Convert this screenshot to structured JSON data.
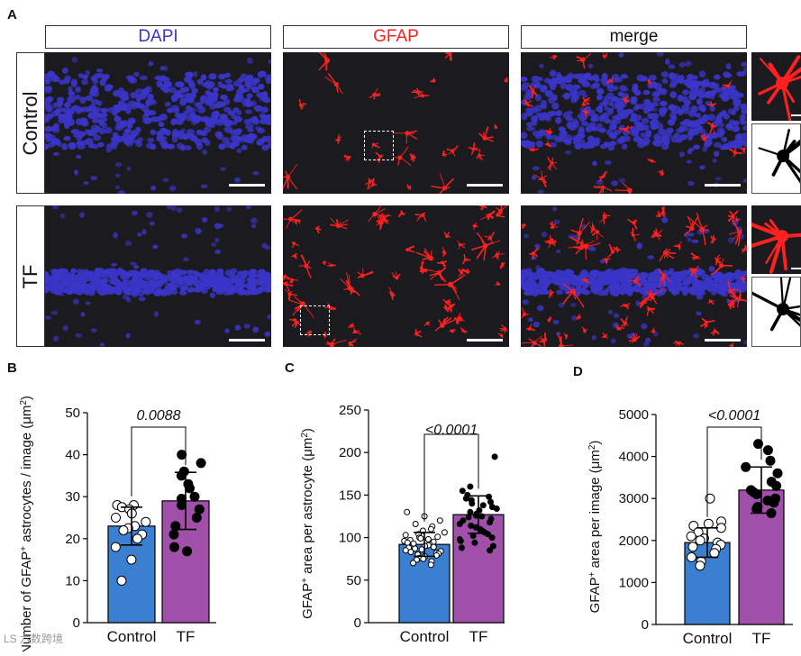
{
  "figure": {
    "panel_labels": {
      "a": "A",
      "b": "B",
      "c": "C",
      "d": "D"
    },
    "columns": {
      "dapi": "DAPI",
      "gfap": "GFAP",
      "merge": "merge"
    },
    "rows": {
      "control": "Control",
      "tf": "TF"
    },
    "colors": {
      "dapi": "#3a35c8",
      "gfap": "#ff2020",
      "control_bar": "#3a7fd0",
      "tf_bar": "#a050a8",
      "background": "#1b1b1f"
    }
  },
  "watermark": "LS 六数跨境",
  "chart_data": [
    {
      "id": "B",
      "type": "bar",
      "categories": [
        "Control",
        "TF"
      ],
      "values": [
        23,
        29
      ],
      "errors": [
        4.5,
        6.8
      ],
      "title": "",
      "ylabel_parts": {
        "pre": "Number of GFAP",
        "sup1": "+",
        "mid": " astrocytes / image (μm",
        "sup2": "2",
        "post": ")"
      },
      "ylim": [
        0,
        50
      ],
      "yticks": [
        "0",
        "10",
        "20",
        "30",
        "40",
        "50"
      ],
      "significance": "0.0088",
      "points": {
        "Control": [
          28,
          28,
          27.5,
          27,
          26,
          25,
          24,
          23,
          22.5,
          22,
          21,
          20,
          18,
          15,
          10
        ],
        "TF": [
          40,
          38,
          36,
          35,
          33,
          32,
          30,
          29.5,
          28,
          27,
          25,
          23,
          21,
          18,
          17
        ]
      }
    },
    {
      "id": "C",
      "type": "bar",
      "categories": [
        "Control",
        "TF"
      ],
      "values": [
        92,
        127
      ],
      "errors": [
        14,
        22
      ],
      "title": "",
      "ylabel_parts": {
        "pre": "GFAP",
        "sup1": "+",
        "mid": " area per astrocyte (μm",
        "sup2": "2",
        "post": ")"
      },
      "ylim": [
        0,
        250
      ],
      "yticks": [
        "0",
        "50",
        "100",
        "150",
        "200",
        "250"
      ],
      "significance": "<0.0001",
      "points": {
        "Control": [
          130,
          125,
          120,
          116,
          113,
          110,
          108,
          106,
          104,
          103,
          101,
          100,
          99,
          98,
          97,
          96,
          95,
          94,
          93,
          92,
          91,
          90,
          89,
          88,
          87,
          86,
          85,
          84,
          83,
          82,
          81,
          80,
          79,
          78,
          76,
          75,
          74,
          72,
          70,
          68
        ],
        "TF": [
          195,
          160,
          155,
          150,
          148,
          146,
          144,
          142,
          140,
          138,
          136,
          134,
          132,
          130,
          128,
          126,
          125,
          124,
          122,
          120,
          118,
          116,
          114,
          112,
          110,
          108,
          106,
          104,
          102,
          100,
          98,
          96,
          94,
          90,
          88,
          85
        ]
      }
    },
    {
      "id": "D",
      "type": "bar",
      "categories": [
        "Control",
        "TF"
      ],
      "values": [
        1950,
        3200
      ],
      "errors": [
        350,
        550
      ],
      "title": "",
      "ylabel_parts": {
        "pre": "GFAP",
        "sup1": "+",
        "mid": " area per image (μm",
        "sup2": "2",
        "post": ")"
      },
      "ylim": [
        0,
        5000
      ],
      "yticks": [
        "0",
        "1000",
        "2000",
        "3000",
        "4000",
        "5000"
      ],
      "significance": "<0.0001",
      "points": {
        "Control": [
          3000,
          2450,
          2400,
          2350,
          2300,
          2200,
          2100,
          2050,
          2000,
          1950,
          1900,
          1850,
          1800,
          1700,
          1600,
          1500,
          1400
        ],
        "TF": [
          4300,
          4150,
          3900,
          3750,
          3600,
          3400,
          3300,
          3200,
          3150,
          3100,
          3000,
          2950,
          2900,
          2800,
          2750,
          2650
        ]
      }
    }
  ]
}
